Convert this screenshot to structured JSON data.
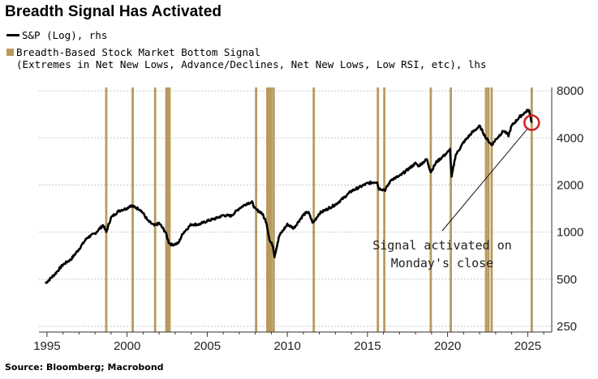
{
  "title": "Breadth Signal Has Activated",
  "legend": {
    "line_label": "S&P (Log), rhs",
    "bar_label_line1": "Breadth-Based Stock Market Bottom Signal",
    "bar_label_line2": "(Extremes in Net New Lows, Advance/Declines, Net New Lows, Low RSI, etc), lhs"
  },
  "source": "Source: Bloomberg; Macrobond",
  "colors": {
    "line": "#000000",
    "bars": "#b89a5e",
    "grid": "#c8c8c8",
    "marker": "#d0202a"
  },
  "chart_data": {
    "type": "line",
    "y_scale": "log",
    "ylim": [
      230,
      8400
    ],
    "xlim": [
      1994.5,
      2026.5
    ],
    "y_ticks": [
      8000,
      4000,
      2000,
      1000,
      500,
      250
    ],
    "x_ticks": [
      1995,
      2000,
      2005,
      2010,
      2015,
      2020,
      2025
    ],
    "y_axis_side": "right",
    "grid": "horizontal dashed",
    "series": [
      {
        "name": "S&P (Log), rhs",
        "points": [
          [
            1994.9,
            470
          ],
          [
            1995.5,
            540
          ],
          [
            1996.0,
            620
          ],
          [
            1996.5,
            670
          ],
          [
            1997.0,
            780
          ],
          [
            1997.5,
            920
          ],
          [
            1998.0,
            980
          ],
          [
            1998.5,
            1110
          ],
          [
            1998.7,
            1000
          ],
          [
            1999.0,
            1240
          ],
          [
            1999.5,
            1370
          ],
          [
            2000.0,
            1420
          ],
          [
            2000.2,
            1480
          ],
          [
            2000.5,
            1440
          ],
          [
            2000.8,
            1400
          ],
          [
            2001.0,
            1320
          ],
          [
            2001.3,
            1180
          ],
          [
            2001.7,
            1100
          ],
          [
            2002.0,
            1140
          ],
          [
            2002.4,
            1000
          ],
          [
            2002.6,
            860
          ],
          [
            2002.8,
            830
          ],
          [
            2003.2,
            850
          ],
          [
            2003.5,
            990
          ],
          [
            2004.0,
            1120
          ],
          [
            2004.5,
            1120
          ],
          [
            2005.0,
            1180
          ],
          [
            2005.5,
            1220
          ],
          [
            2006.0,
            1280
          ],
          [
            2006.5,
            1270
          ],
          [
            2007.0,
            1420
          ],
          [
            2007.5,
            1530
          ],
          [
            2007.8,
            1550
          ],
          [
            2008.0,
            1400
          ],
          [
            2008.4,
            1330
          ],
          [
            2008.7,
            1150
          ],
          [
            2008.9,
            880
          ],
          [
            2009.1,
            820
          ],
          [
            2009.2,
            700
          ],
          [
            2009.5,
            950
          ],
          [
            2010.0,
            1120
          ],
          [
            2010.4,
            1060
          ],
          [
            2011.0,
            1290
          ],
          [
            2011.3,
            1350
          ],
          [
            2011.6,
            1140
          ],
          [
            2012.0,
            1320
          ],
          [
            2013.0,
            1500
          ],
          [
            2013.5,
            1650
          ],
          [
            2014.0,
            1830
          ],
          [
            2015.0,
            2050
          ],
          [
            2015.6,
            2100
          ],
          [
            2015.7,
            1900
          ],
          [
            2016.1,
            1860
          ],
          [
            2016.5,
            2170
          ],
          [
            2017.0,
            2280
          ],
          [
            2018.0,
            2750
          ],
          [
            2018.2,
            2650
          ],
          [
            2018.7,
            2920
          ],
          [
            2018.95,
            2420
          ],
          [
            2019.3,
            2800
          ],
          [
            2020.0,
            3230
          ],
          [
            2020.15,
            3380
          ],
          [
            2020.25,
            2250
          ],
          [
            2020.5,
            3100
          ],
          [
            2021.0,
            3750
          ],
          [
            2021.5,
            4300
          ],
          [
            2022.0,
            4760
          ],
          [
            2022.4,
            4000
          ],
          [
            2022.75,
            3600
          ],
          [
            2023.0,
            3900
          ],
          [
            2023.5,
            4450
          ],
          [
            2023.8,
            4150
          ],
          [
            2024.0,
            4780
          ],
          [
            2024.5,
            5450
          ],
          [
            2025.0,
            6000
          ],
          [
            2025.1,
            5950
          ],
          [
            2025.25,
            5000
          ]
        ]
      }
    ],
    "signal_dates": [
      1998.7,
      2000.35,
      2001.75,
      2002.45,
      2002.55,
      2002.65,
      2008.05,
      2008.75,
      2008.83,
      2008.9,
      2009.0,
      2009.15,
      2011.65,
      2015.65,
      2016.05,
      2018.95,
      2020.2,
      2022.4,
      2022.55,
      2022.75,
      2025.25
    ],
    "annotation": {
      "text_line1": "Signal activated on",
      "text_line2": "Monday's close",
      "x": 2025.25,
      "y": 5000
    }
  }
}
